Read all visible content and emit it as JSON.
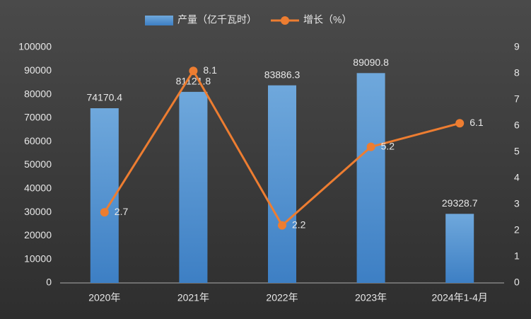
{
  "chart_data": {
    "type": "bar",
    "categories": [
      "2020年",
      "2021年",
      "2022年",
      "2023年",
      "2024年1-4月"
    ],
    "series": [
      {
        "name": "产量（亿千瓦时）",
        "color": "#5b9bd5",
        "values": [
          74170.4,
          81121.8,
          83886.3,
          89090.8,
          29328.7
        ]
      },
      {
        "name": "增长（%）",
        "color": "#ed7d31",
        "type": "line",
        "axis": "y2",
        "values": [
          2.7,
          8.1,
          2.2,
          5.2,
          6.1
        ]
      }
    ],
    "ylim": [
      0,
      100000
    ],
    "yticks": [
      0,
      10000,
      20000,
      30000,
      40000,
      50000,
      60000,
      70000,
      80000,
      90000,
      100000
    ],
    "y2lim": [
      0,
      9
    ],
    "y2ticks": [
      0,
      1,
      2,
      3,
      4,
      5,
      6,
      7,
      8,
      9
    ],
    "legend": "top"
  }
}
